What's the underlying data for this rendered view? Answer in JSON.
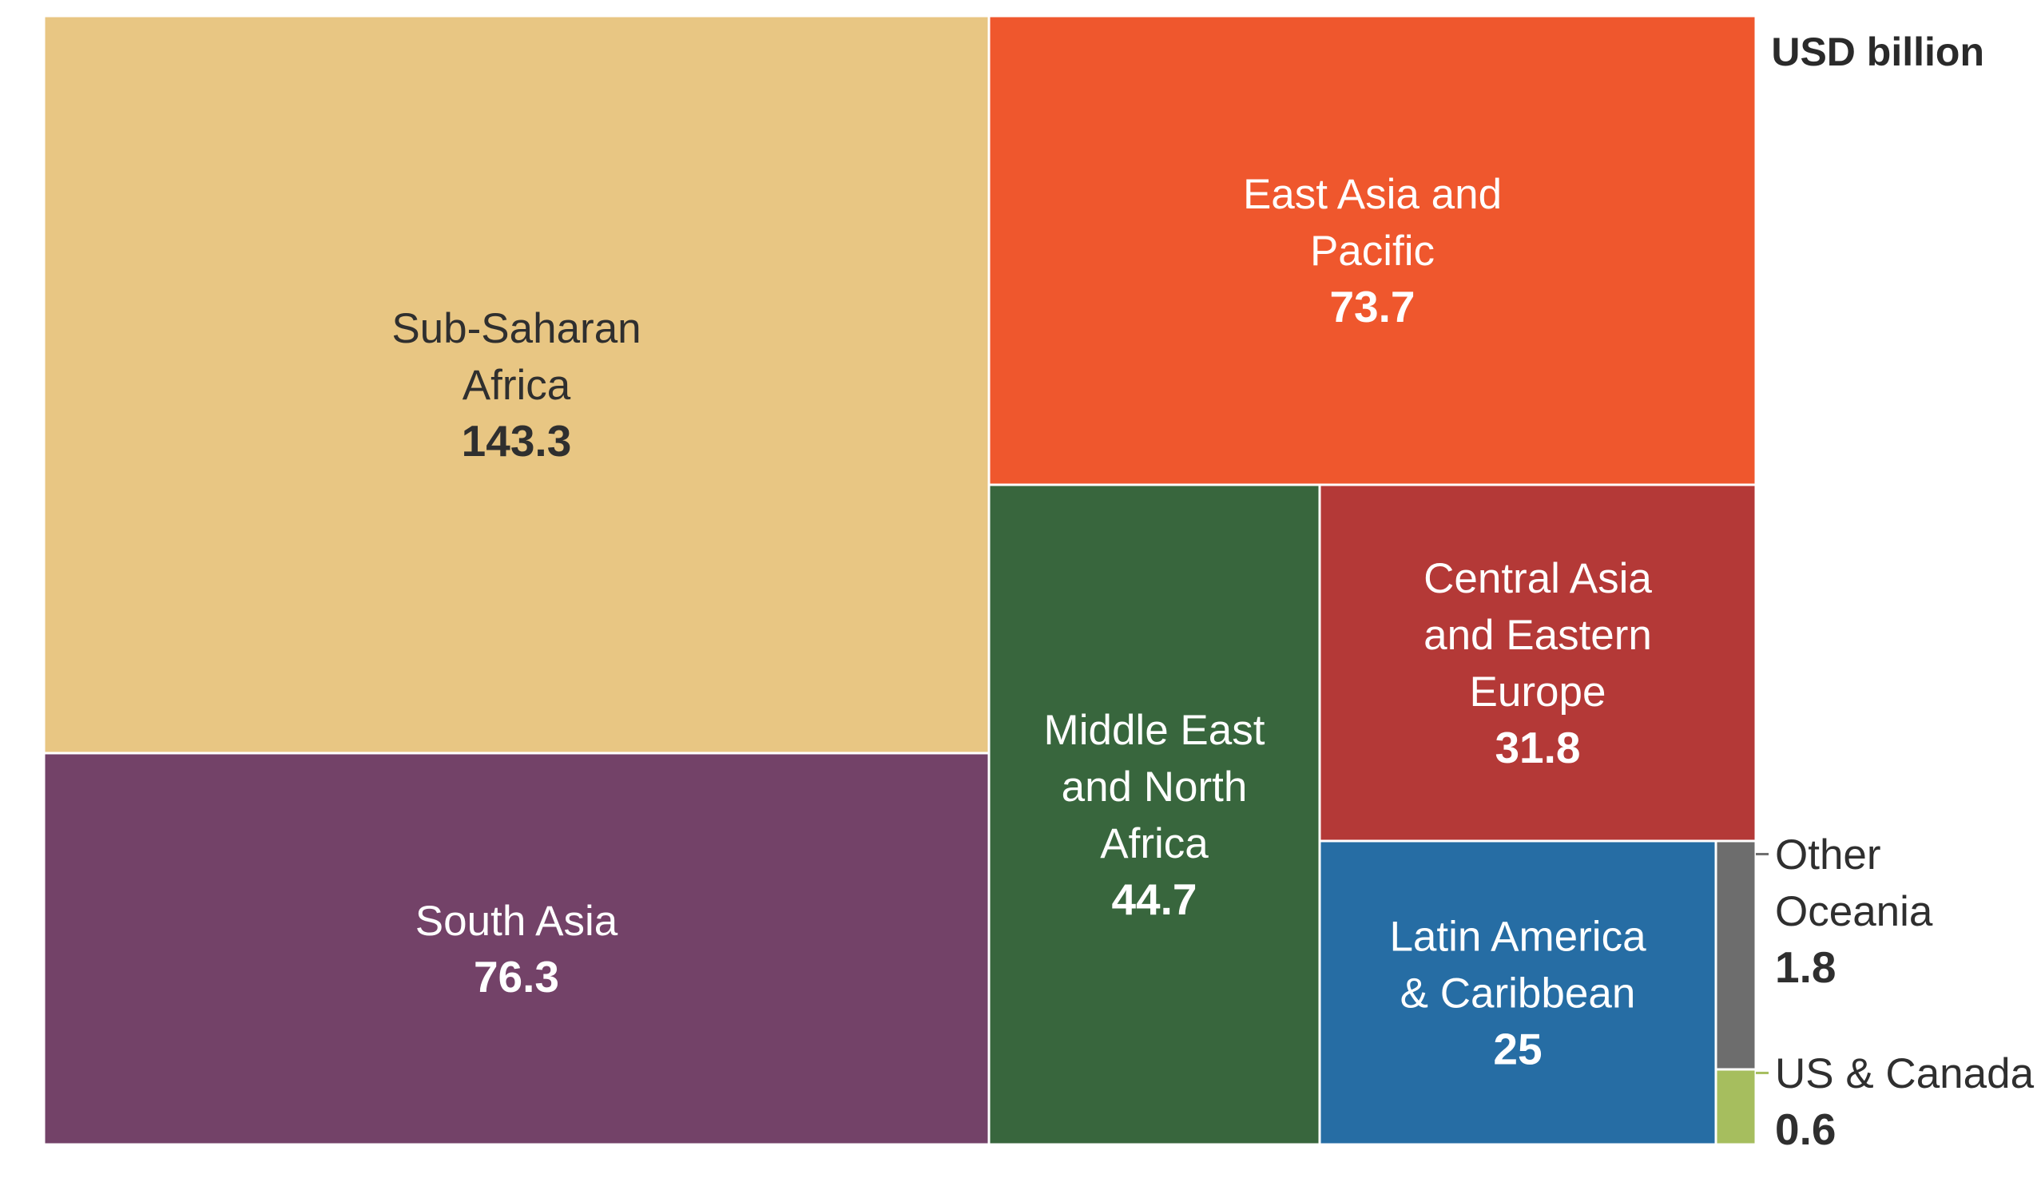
{
  "chart_data": {
    "type": "treemap",
    "unit": "USD billion",
    "tiles": [
      {
        "name": "Sub-Saharan Africa",
        "label_lines": [
          "Sub-Saharan",
          "Africa"
        ],
        "value": 143.3,
        "value_label": "143.3",
        "color": "#E8C683",
        "text_color": "#2f2f2f"
      },
      {
        "name": "South Asia",
        "label_lines": [
          "South Asia"
        ],
        "value": 76.3,
        "value_label": "76.3",
        "color": "#734268",
        "text_color": "#ffffff"
      },
      {
        "name": "East Asia and Pacific",
        "label_lines": [
          "East Asia and",
          "Pacific"
        ],
        "value": 73.7,
        "value_label": "73.7",
        "color": "#EF572D",
        "text_color": "#ffffff"
      },
      {
        "name": "Middle East and North Africa",
        "label_lines": [
          "Middle East",
          "and North",
          "Africa"
        ],
        "value": 44.7,
        "value_label": "44.7",
        "color": "#38663D",
        "text_color": "#ffffff"
      },
      {
        "name": "Central Asia and Eastern Europe",
        "label_lines": [
          "Central Asia",
          "and Eastern",
          "Europe"
        ],
        "value": 31.8,
        "value_label": "31.8",
        "color": "#B43937",
        "text_color": "#ffffff"
      },
      {
        "name": "Latin America & Caribbean",
        "label_lines": [
          "Latin America",
          "& Caribbean"
        ],
        "value": 25,
        "value_label": "25",
        "color": "#266DA4",
        "text_color": "#ffffff"
      },
      {
        "name": "Other Oceania",
        "label_lines": [
          "Other",
          "Oceania"
        ],
        "value": 1.8,
        "value_label": "1.8",
        "color": "#6D6D6D",
        "text_color": "#2f2f2f"
      },
      {
        "name": "US & Canada",
        "label_lines": [
          "US & Canada"
        ],
        "value": 0.6,
        "value_label": "0.6",
        "color": "#A6BE5E",
        "text_color": "#2f2f2f"
      }
    ]
  }
}
